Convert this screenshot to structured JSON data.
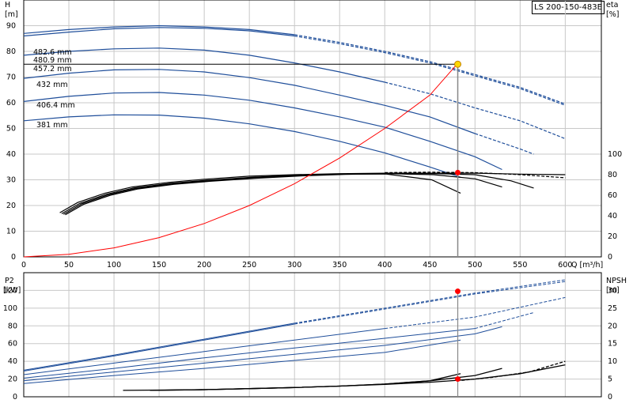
{
  "model": "LS 200-150-483E",
  "colors": {
    "pump_curve": "#1f4e9a",
    "efficiency_curve": "#000000",
    "system_curve": "#ff0000",
    "duty_marker": "#ffd700",
    "point_marker": "#ff0000",
    "grid": "#c8c8c8",
    "duty_line": "#000000"
  },
  "chart_data": [
    {
      "type": "line",
      "name": "performance",
      "left_axis_title": "H",
      "left_axis_unit": "[m]",
      "right_axis_title": "eta",
      "right_axis_unit": "[%]",
      "x_axis_title": "Q [m³/h]",
      "xlim": [
        0,
        640
      ],
      "ylim": [
        0,
        100
      ],
      "x_ticks": [
        0,
        50,
        100,
        150,
        200,
        250,
        300,
        350,
        400,
        450,
        500,
        550,
        600
      ],
      "y_ticks": [
        0,
        10,
        20,
        30,
        40,
        50,
        60,
        70,
        80,
        90
      ],
      "eta_ticks": [
        0,
        20,
        40,
        60,
        80,
        100
      ],
      "grid": true,
      "head_series": [
        {
          "name": "482.6 mm",
          "x": [
            0,
            50,
            100,
            150,
            200,
            250,
            300,
            350,
            400,
            450,
            500,
            550,
            600
          ],
          "y": [
            87,
            88.5,
            89.5,
            90,
            89.5,
            88.5,
            86.5,
            83.5,
            80,
            76,
            71,
            66,
            59.5
          ],
          "solid_until": 280
        },
        {
          "name": "480.9 mm",
          "x": [
            0,
            50,
            100,
            150,
            200,
            250,
            300,
            350,
            400,
            450,
            500,
            550,
            600
          ],
          "y": [
            86,
            87.5,
            88.8,
            89.3,
            89,
            88,
            86,
            83,
            79.5,
            75.5,
            70.5,
            65.5,
            59
          ],
          "solid_until": 280
        },
        {
          "name": "457.2 mm",
          "x": [
            0,
            50,
            100,
            150,
            200,
            250,
            300,
            350,
            400,
            450,
            500,
            550,
            600
          ],
          "y": [
            78.5,
            80,
            81,
            81.3,
            80.5,
            78.5,
            75.5,
            72,
            68,
            63.5,
            58,
            53,
            46
          ],
          "solid_until": 380
        },
        {
          "name": "432 mm",
          "x": [
            0,
            50,
            100,
            150,
            200,
            250,
            300,
            350,
            400,
            450,
            500,
            550,
            565
          ],
          "y": [
            69.5,
            71.5,
            72.8,
            73,
            72,
            69.8,
            66.8,
            63,
            59,
            54.5,
            48,
            42,
            40
          ],
          "solid_until": 480
        },
        {
          "name": "406.4 mm",
          "x": [
            0,
            50,
            100,
            150,
            200,
            250,
            300,
            350,
            400,
            450,
            500,
            530
          ],
          "y": [
            60.5,
            62.5,
            63.8,
            64,
            63,
            61,
            58,
            54.5,
            50.5,
            45,
            39,
            34
          ],
          "solid_until": 530
        },
        {
          "name": "381 mm",
          "x": [
            0,
            50,
            100,
            150,
            200,
            250,
            300,
            350,
            400,
            450,
            484
          ],
          "y": [
            53,
            54.5,
            55.3,
            55.2,
            54,
            51.8,
            48.8,
            45,
            40.5,
            35,
            31
          ],
          "solid_until": 484
        }
      ],
      "efficiency_series": [
        {
          "x": [
            40,
            60,
            90,
            120,
            160,
            200,
            250,
            300,
            350,
            400,
            450,
            500,
            550,
            600
          ],
          "y": [
            43,
            53,
            62,
            68,
            72.5,
            75.5,
            78.5,
            80,
            81,
            81.5,
            81.5,
            81.5,
            80.5,
            80
          ]
        },
        {
          "x": [
            42,
            62,
            92,
            122,
            162,
            202,
            252,
            302,
            352,
            402,
            452,
            484
          ],
          "y": [
            42,
            52,
            61,
            67,
            71.5,
            74.5,
            77.5,
            79.5,
            80.5,
            80.5,
            75,
            62
          ]
        },
        {
          "x": [
            44,
            64,
            94,
            124,
            164,
            204,
            254,
            304,
            354,
            404,
            454,
            500,
            530
          ],
          "y": [
            41.5,
            51.5,
            60.5,
            66.5,
            71,
            74,
            77,
            79,
            80.5,
            81,
            80,
            76,
            68
          ]
        },
        {
          "x": [
            46,
            66,
            96,
            126,
            166,
            206,
            256,
            306,
            356,
            406,
            456,
            500,
            540,
            565
          ],
          "y": [
            41,
            51,
            60,
            66,
            70.5,
            73.5,
            76.5,
            78.8,
            80.3,
            81,
            81,
            80,
            74,
            67
          ]
        },
        {
          "x": [
            400,
            450,
            500,
            550,
            600
          ],
          "y": [
            82,
            82.5,
            82,
            80,
            77
          ],
          "dashed": true
        }
      ],
      "system_curve": {
        "x": [
          0,
          50,
          100,
          150,
          200,
          250,
          300,
          350,
          400,
          450,
          480
        ],
        "y": [
          0,
          1,
          3.5,
          7.5,
          13,
          20,
          28.5,
          38.5,
          50,
          63,
          75
        ]
      },
      "duty_point": {
        "q": 480.9,
        "h": 75
      },
      "eta_point": {
        "q": 480.9,
        "eta": 82
      }
    },
    {
      "type": "line",
      "name": "power-npsh",
      "left_axis_title": "P2",
      "left_axis_unit": "[kW]",
      "right_axis_title": "NPSH",
      "right_axis_unit": "[m]",
      "xlim": [
        0,
        640
      ],
      "ylim": [
        0,
        140
      ],
      "y_ticks": [
        0,
        20,
        40,
        60,
        80,
        100,
        120
      ],
      "npsh_ticks": [
        0,
        5,
        10,
        15,
        20,
        25,
        30
      ],
      "grid": true,
      "power_series": [
        {
          "x": [
            0,
            100,
            200,
            300,
            400,
            500,
            600
          ],
          "y": [
            30,
            47,
            65,
            83,
            100,
            117,
            132
          ],
          "solid_until": 300
        },
        {
          "x": [
            0,
            100,
            200,
            300,
            400,
            500,
            600
          ],
          "y": [
            29,
            46,
            64,
            82,
            99,
            116,
            130
          ],
          "solid_until": 300
        },
        {
          "x": [
            0,
            100,
            200,
            300,
            400,
            500,
            600
          ],
          "y": [
            25,
            38,
            51,
            64,
            77,
            90,
            112
          ],
          "solid_until": 380
        },
        {
          "x": [
            0,
            100,
            200,
            300,
            400,
            500,
            565
          ],
          "y": [
            21,
            32,
            44,
            55,
            66,
            77,
            95
          ],
          "solid_until": 480
        },
        {
          "x": [
            0,
            100,
            200,
            300,
            400,
            500,
            530
          ],
          "y": [
            18,
            28,
            38,
            48,
            58,
            71,
            79
          ]
        },
        {
          "x": [
            0,
            100,
            200,
            300,
            400,
            484
          ],
          "y": [
            15,
            24,
            32,
            41,
            50,
            64
          ]
        }
      ],
      "npsh_series": [
        {
          "x": [
            110,
            150,
            200,
            250,
            300,
            350,
            400,
            450,
            500,
            550,
            600
          ],
          "y": [
            1.8,
            1.9,
            2.0,
            2.3,
            2.6,
            3.0,
            3.5,
            4.1,
            5.0,
            6.5,
            9.0
          ]
        },
        {
          "x": [
            140,
            200,
            250,
            300,
            350,
            400,
            450,
            484
          ],
          "y": [
            1.8,
            2.0,
            2.3,
            2.6,
            3.0,
            3.6,
            4.5,
            6.5
          ]
        },
        {
          "x": [
            140,
            200,
            250,
            300,
            350,
            400,
            450,
            500,
            530
          ],
          "y": [
            1.8,
            2.0,
            2.3,
            2.6,
            3.0,
            3.6,
            4.5,
            6.0,
            8.0
          ]
        },
        {
          "x": [
            480,
            520,
            560,
            600
          ],
          "y": [
            4.5,
            5.5,
            7.0,
            10.0
          ],
          "dashed": true
        }
      ],
      "power_point": {
        "q": 480.9,
        "p": 119
      },
      "npsh_point": {
        "q": 480.9,
        "npsh": 5
      }
    }
  ]
}
